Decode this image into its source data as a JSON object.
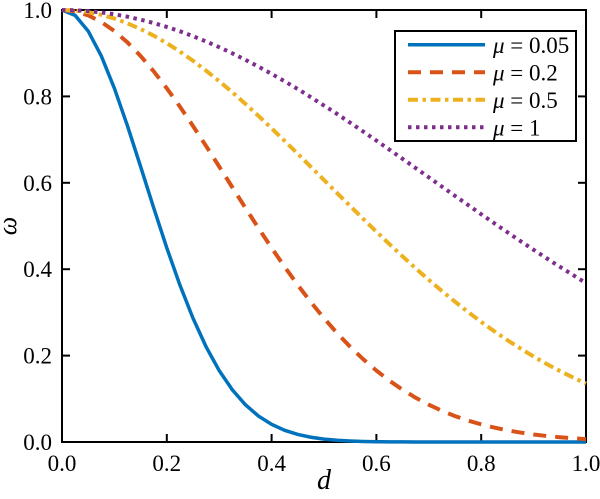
{
  "figure": {
    "background": "#ffffff",
    "frame_color": "#000000"
  },
  "chart_data": {
    "type": "line",
    "title": "",
    "xlabel": "d",
    "ylabel": "ω",
    "xlim": [
      0,
      1
    ],
    "ylim": [
      0,
      1
    ],
    "grid": false,
    "legend_position": "top-right",
    "xticks": [
      0,
      0.2,
      0.4,
      0.6,
      0.8,
      1.0
    ],
    "xtick_labels": [
      "0.0",
      "0.2",
      "0.4",
      "0.6",
      "0.8",
      "1.0"
    ],
    "yticks": [
      0,
      0.2,
      0.4,
      0.6,
      0.8,
      1.0
    ],
    "ytick_labels": [
      "0.0",
      "0.2",
      "0.4",
      "0.6",
      "0.8",
      "1.0"
    ],
    "x": [
      0,
      0.025,
      0.05,
      0.075,
      0.1,
      0.125,
      0.15,
      0.175,
      0.2,
      0.225,
      0.25,
      0.275,
      0.3,
      0.325,
      0.35,
      0.375,
      0.4,
      0.425,
      0.45,
      0.475,
      0.5,
      0.525,
      0.55,
      0.575,
      0.6,
      0.625,
      0.65,
      0.675,
      0.7,
      0.725,
      0.75,
      0.775,
      0.8,
      0.825,
      0.85,
      0.875,
      0.9,
      0.925,
      0.95,
      0.975,
      1
    ],
    "series": [
      {
        "name": "μ = 0.05",
        "mu": 0.05,
        "color": "#0072BD",
        "linestyle": "solid",
        "values": [
          1,
          0.9876,
          0.9512,
          0.8936,
          0.8187,
          0.7316,
          0.6376,
          0.542,
          0.4493,
          0.3633,
          0.2865,
          0.2204,
          0.1653,
          0.1209,
          0.0863,
          0.06,
          0.0408,
          0.027,
          0.0174,
          0.011,
          0.0067,
          0.004,
          0.0024,
          0.0013,
          0.0007,
          0.0004,
          0.0002,
          0.0001,
          0.0001,
          0,
          0,
          0,
          0,
          0,
          0,
          0,
          0,
          0,
          0,
          0,
          0
        ]
      },
      {
        "name": "μ = 0.2",
        "mu": 0.2,
        "color": "#D95319",
        "linestyle": "dashed",
        "values": [
          1,
          0.9969,
          0.9876,
          0.9723,
          0.9512,
          0.9249,
          0.8936,
          0.858,
          0.8187,
          0.7764,
          0.7316,
          0.6851,
          0.6376,
          0.5897,
          0.542,
          0.495,
          0.4493,
          0.4053,
          0.3633,
          0.3236,
          0.2865,
          0.252,
          0.2204,
          0.1915,
          0.1653,
          0.1418,
          0.1209,
          0.1025,
          0.0863,
          0.0722,
          0.06,
          0.0496,
          0.0408,
          0.0333,
          0.027,
          0.0218,
          0.0174,
          0.0139,
          0.011,
          0.0086,
          0.0067
        ]
      },
      {
        "name": "μ = 0.5",
        "mu": 0.5,
        "color": "#EDB120",
        "linestyle": "dashdot",
        "values": [
          1,
          0.9988,
          0.995,
          0.9888,
          0.9802,
          0.9692,
          0.956,
          0.9406,
          0.9231,
          0.9037,
          0.8825,
          0.8596,
          0.8353,
          0.8096,
          0.7827,
          0.7548,
          0.7261,
          0.6968,
          0.667,
          0.6368,
          0.6065,
          0.5762,
          0.5461,
          0.5162,
          0.4868,
          0.4578,
          0.4296,
          0.402,
          0.3753,
          0.3495,
          0.3247,
          0.3008,
          0.278,
          0.2563,
          0.2357,
          0.2163,
          0.1979,
          0.1806,
          0.1645,
          0.1494,
          0.1353
        ]
      },
      {
        "name": "μ = 1",
        "mu": 1,
        "color": "#7E2F8E",
        "linestyle": "dotted",
        "values": [
          1,
          0.9994,
          0.9975,
          0.9944,
          0.99,
          0.9845,
          0.9777,
          0.9698,
          0.9608,
          0.9507,
          0.9394,
          0.9271,
          0.9139,
          0.8998,
          0.8846,
          0.8689,
          0.8521,
          0.8348,
          0.817,
          0.798,
          0.7788,
          0.7593,
          0.739,
          0.7185,
          0.6977,
          0.6766,
          0.6554,
          0.634,
          0.6126,
          0.5911,
          0.5698,
          0.5485,
          0.5273,
          0.5063,
          0.4855,
          0.465,
          0.4449,
          0.4251,
          0.4057,
          0.3867,
          0.3679
        ]
      }
    ]
  }
}
